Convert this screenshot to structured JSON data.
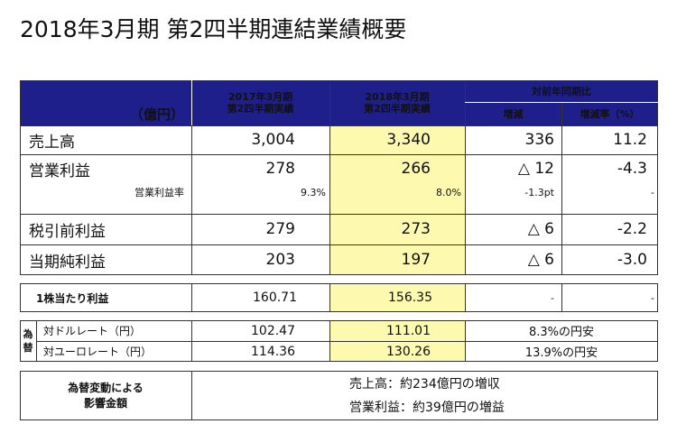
{
  "title": "2018年3月期 第2四半期連結業績概要",
  "header": {
    "unit": "（億円）",
    "col_prev_1": "2017年3月期",
    "col_prev_2": "第2四半期実績",
    "col_curr_1": "2018年3月期",
    "col_curr_2": "第2四半期実績",
    "col_yoy": "対前年同期比",
    "col_change": "増減",
    "col_rate": "増減率（%）"
  },
  "rows": {
    "sales": {
      "label": "売上高",
      "prev": "3,004",
      "curr": "3,340",
      "change": "336",
      "rate": "11.2"
    },
    "op": {
      "label": "営業利益",
      "prev": "278",
      "curr": "266",
      "change": "△ 12",
      "rate": "-4.3"
    },
    "op_margin": {
      "label": "営業利益率",
      "prev": "9.3%",
      "curr": "8.0%",
      "change": "-1.3pt",
      "rate": "-"
    },
    "pretax": {
      "label": "税引前利益",
      "prev": "279",
      "curr": "273",
      "change": "△ 6",
      "rate": "-2.2"
    },
    "net": {
      "label": "当期純利益",
      "prev": "203",
      "curr": "197",
      "change": "△ 6",
      "rate": "-3.0"
    },
    "eps": {
      "label": "1株当たり利益",
      "prev": "160.71",
      "curr": "156.35",
      "change": "-",
      "rate": "-"
    }
  },
  "fx": {
    "side_1": "為",
    "side_2": "替",
    "usd": {
      "label": "対ドルレート（円）",
      "prev": "102.47",
      "curr": "111.01",
      "note": "8.3%の円安"
    },
    "eur": {
      "label": "対ユーロレート（円）",
      "prev": "114.36",
      "curr": "130.26",
      "note": "13.9%の円安"
    }
  },
  "impact": {
    "label_1": "為替変動による",
    "label_2": "影響金額",
    "line_1": "売上高：約234億円の増収",
    "line_2": "営業利益：約39億円の増益"
  }
}
